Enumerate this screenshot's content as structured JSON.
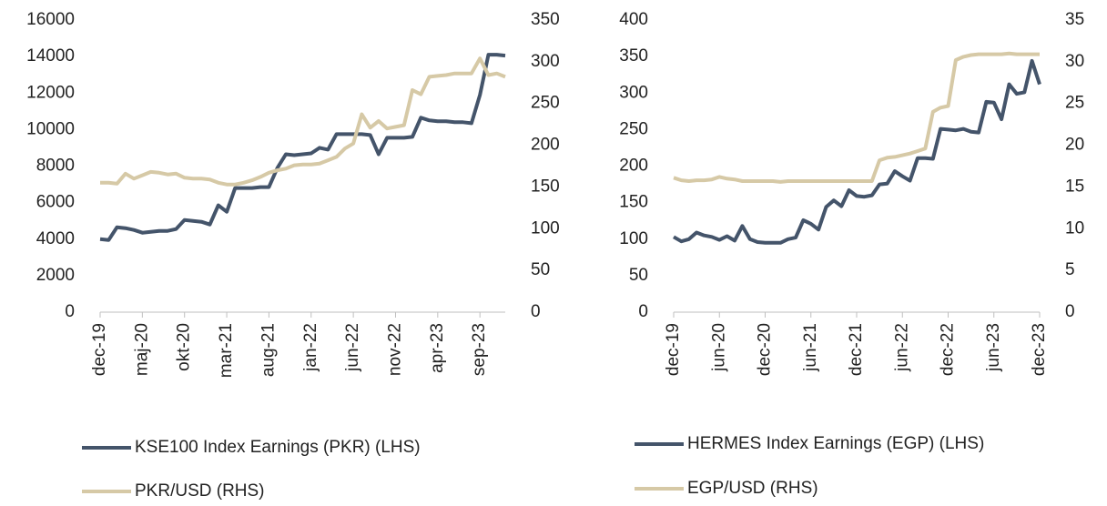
{
  "chart_data": [
    {
      "type": "line",
      "categories": [
        "dec-19",
        null,
        null,
        null,
        null,
        "maj-20",
        null,
        null,
        null,
        null,
        "okt-20",
        null,
        null,
        null,
        null,
        "mar-21",
        null,
        null,
        null,
        null,
        "aug-21",
        null,
        null,
        null,
        null,
        "jan-22",
        null,
        null,
        null,
        null,
        "jun-22",
        null,
        null,
        null,
        null,
        "nov-22",
        null,
        null,
        null,
        null,
        "apr-23",
        null,
        null,
        null,
        null,
        "sep-23",
        null,
        null,
        null
      ],
      "series": [
        {
          "name": "KSE100 Index Earnings (PKR) (LHS)",
          "color": "#44546a",
          "values": [
            4000,
            3950,
            4650,
            4600,
            4500,
            4350,
            4400,
            4450,
            4450,
            4550,
            5050,
            5000,
            4950,
            4800,
            5850,
            5500,
            6800,
            6800,
            6800,
            6850,
            6850,
            7900,
            8650,
            8600,
            8650,
            8700,
            9000,
            8900,
            9750,
            9750,
            9750,
            9750,
            9700,
            8650,
            9550,
            9550,
            9550,
            9600,
            10650,
            10500,
            10450,
            10450,
            10400,
            10400,
            10350,
            11900,
            14100,
            14100,
            14050
          ]
        },
        {
          "name": "PKR/USD (RHS)",
          "color": "#d6c9a6",
          "axis": "y2",
          "values": [
            155,
            155,
            154,
            166,
            160,
            164,
            168,
            167,
            165,
            166,
            161,
            160,
            160,
            159,
            155,
            153,
            153,
            155,
            158,
            162,
            167,
            170,
            172,
            176,
            177,
            177,
            178,
            182,
            186,
            196,
            202,
            237,
            221,
            229,
            220,
            222,
            224,
            266,
            261,
            282,
            283,
            284,
            286,
            286,
            286,
            304,
            284,
            286,
            282
          ]
        }
      ],
      "ylim": [
        0,
        16000
      ],
      "yticks": [
        0,
        2000,
        4000,
        6000,
        8000,
        10000,
        12000,
        14000,
        16000
      ],
      "y2lim": [
        0,
        350
      ],
      "y2ticks": [
        0,
        50,
        100,
        150,
        200,
        250,
        300,
        350
      ]
    },
    {
      "type": "line",
      "categories": [
        "dec-19",
        null,
        null,
        null,
        null,
        null,
        "jun-20",
        null,
        null,
        null,
        null,
        null,
        "dec-20",
        null,
        null,
        null,
        null,
        null,
        "jun-21",
        null,
        null,
        null,
        null,
        null,
        "dec-21",
        null,
        null,
        null,
        null,
        null,
        "jun-22",
        null,
        null,
        null,
        null,
        null,
        "dec-22",
        null,
        null,
        null,
        null,
        null,
        "jun-23",
        null,
        null,
        null,
        null,
        null,
        "dec-23"
      ],
      "series": [
        {
          "name": "HERMES Index Earnings (EGP) (LHS)",
          "color": "#44546a",
          "values": [
            103,
            97,
            100,
            109,
            105,
            103,
            99,
            104,
            98,
            118,
            100,
            96,
            95,
            95,
            95,
            100,
            102,
            126,
            121,
            113,
            144,
            153,
            145,
            167,
            159,
            158,
            160,
            175,
            176,
            193,
            186,
            180,
            211,
            211,
            210,
            251,
            250,
            249,
            251,
            247,
            246,
            288,
            287,
            264,
            312,
            299,
            301,
            344,
            312
          ]
        },
        {
          "name": "EGP/USD (RHS)",
          "color": "#d6c9a6",
          "axis": "y2",
          "values": [
            16.1,
            15.8,
            15.7,
            15.8,
            15.8,
            15.9,
            16.2,
            16.0,
            15.9,
            15.7,
            15.7,
            15.7,
            15.7,
            15.7,
            15.6,
            15.7,
            15.7,
            15.7,
            15.7,
            15.7,
            15.7,
            15.7,
            15.7,
            15.7,
            15.7,
            15.7,
            15.7,
            18.2,
            18.5,
            18.6,
            18.8,
            19.0,
            19.3,
            19.6,
            24.0,
            24.5,
            24.7,
            30.2,
            30.6,
            30.8,
            30.9,
            30.9,
            30.9,
            30.9,
            31.0,
            30.9,
            30.9,
            30.9,
            30.9
          ]
        }
      ],
      "ylim": [
        0,
        400
      ],
      "yticks": [
        0,
        50,
        100,
        150,
        200,
        250,
        300,
        350,
        400
      ],
      "y2lim": [
        0,
        35
      ],
      "y2ticks": [
        0,
        5,
        10,
        15,
        20,
        25,
        30,
        35
      ]
    }
  ]
}
